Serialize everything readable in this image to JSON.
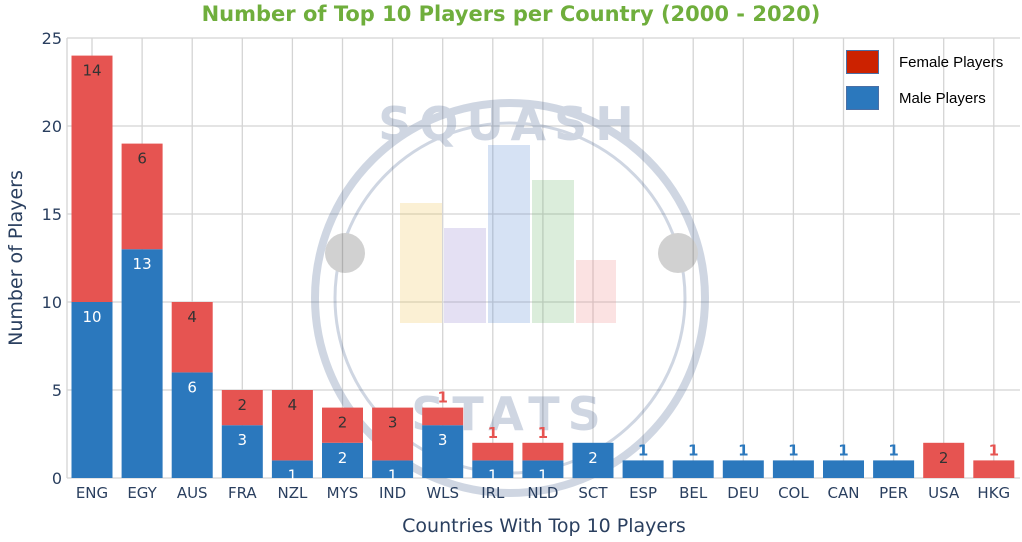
{
  "chart_data": {
    "type": "bar",
    "stacked": true,
    "title": "Number of Top 10 Players per Country (2000 - 2020)",
    "xlabel": "Countries With Top 10 Players",
    "ylabel": "Number of Players",
    "ylim": [
      0,
      25
    ],
    "yticks": [
      0,
      5,
      10,
      15,
      20,
      25
    ],
    "grid": true,
    "legend_position": "top-right",
    "categories": [
      "ENG",
      "EGY",
      "AUS",
      "FRA",
      "NZL",
      "MYS",
      "IND",
      "WLS",
      "IRL",
      "NLD",
      "SCT",
      "ESP",
      "BEL",
      "DEU",
      "COL",
      "CAN",
      "PER",
      "USA",
      "HKG"
    ],
    "series": [
      {
        "name": "Male Players",
        "color": "#2b78bd",
        "values": [
          10,
          13,
          6,
          3,
          1,
          2,
          1,
          3,
          1,
          1,
          2,
          1,
          1,
          1,
          1,
          1,
          1,
          0,
          0
        ]
      },
      {
        "name": "Female Players",
        "color": "#e65451",
        "values": [
          14,
          6,
          4,
          2,
          4,
          2,
          3,
          1,
          1,
          1,
          0,
          0,
          0,
          0,
          0,
          0,
          0,
          2,
          1
        ]
      }
    ],
    "legend": [
      {
        "label": "Female Players",
        "color": "#cc2200"
      },
      {
        "label": "Male Players",
        "color": "#2b78bd"
      }
    ]
  },
  "watermark": {
    "top_text": "SQUASH",
    "bottom_text": "STATS"
  }
}
